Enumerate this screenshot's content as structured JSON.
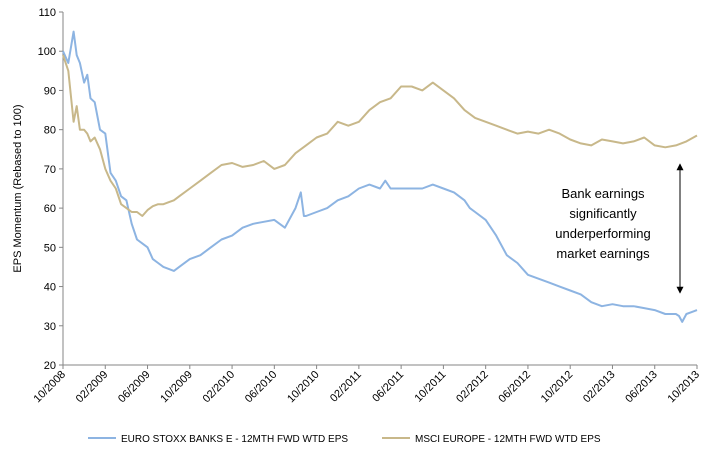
{
  "chart_data": {
    "type": "line",
    "title": "",
    "xlabel": "",
    "ylabel": "EPS Momentum (Rebased to 100)",
    "ylim": [
      20,
      110
    ],
    "y_ticks": [
      "20",
      "30",
      "40",
      "50",
      "60",
      "70",
      "80",
      "90",
      "100",
      "110"
    ],
    "x_ticks": [
      "10/2008",
      "02/2009",
      "06/2009",
      "10/2009",
      "02/2010",
      "06/2010",
      "10/2010",
      "02/2011",
      "06/2011",
      "10/2011",
      "02/2012",
      "06/2012",
      "10/2012",
      "02/2013",
      "06/2013",
      "10/2013"
    ],
    "x_range": [
      0,
      60
    ],
    "grid": false,
    "legend_position": "bottom",
    "series": [
      {
        "name": "EURO STOXX BANKS E - 12MTH FWD WTD EPS",
        "color": "#8db4e2",
        "x": [
          0,
          0.5,
          1,
          1.3,
          1.6,
          2.0,
          2.3,
          2.6,
          3,
          3.5,
          4,
          4.5,
          5,
          5.5,
          6,
          6.5,
          7,
          7.5,
          8,
          8.5,
          9,
          9.5,
          10,
          10.5,
          11,
          12,
          13,
          14,
          15,
          16,
          17,
          18,
          19,
          20,
          21,
          22,
          22.5,
          22.8,
          23,
          24,
          25,
          26,
          27,
          28,
          29,
          30,
          30.5,
          31,
          32,
          33,
          34,
          35,
          36,
          37,
          38,
          38.5,
          39,
          40,
          41,
          42,
          43,
          44,
          45,
          46,
          47,
          48,
          49,
          50,
          51,
          52,
          53,
          54,
          55,
          56,
          57,
          58,
          58.3,
          58.6,
          59,
          59.5,
          60
        ],
        "values": [
          100,
          97,
          105,
          99,
          97,
          92,
          94,
          88,
          87,
          80,
          79,
          69,
          67,
          63,
          62,
          56,
          52,
          51,
          50,
          47,
          46,
          45,
          44.5,
          44,
          45,
          47,
          48,
          50,
          52,
          53,
          55,
          56,
          56.5,
          57,
          55,
          60,
          64,
          58,
          58,
          59,
          60,
          62,
          63,
          65,
          66,
          65,
          67,
          65,
          65,
          65,
          65,
          66,
          65,
          64,
          62,
          60,
          59,
          57,
          53,
          48,
          46,
          43,
          42,
          41,
          40,
          39,
          38,
          36,
          35,
          35.5,
          35,
          35,
          34.5,
          34,
          33,
          33,
          32.5,
          31,
          33,
          33.5,
          34
        ]
      },
      {
        "name": "MSCI EUROPE - 12MTH FWD WTD EPS",
        "color": "#c8b88a",
        "x": [
          0,
          0.5,
          1,
          1.3,
          1.6,
          2.0,
          2.3,
          2.6,
          3,
          3.5,
          4,
          4.5,
          5,
          5.5,
          6,
          6.5,
          7,
          7.5,
          8,
          8.5,
          9,
          9.5,
          10,
          10.5,
          11,
          12,
          13,
          14,
          15,
          16,
          17,
          18,
          19,
          20,
          21,
          22,
          23,
          24,
          25,
          26,
          27,
          28,
          29,
          30,
          31,
          32,
          33,
          34,
          35,
          36,
          37,
          38,
          39,
          40,
          41,
          42,
          43,
          44,
          45,
          46,
          47,
          48,
          49,
          50,
          51,
          52,
          53,
          54,
          55,
          56,
          57,
          58,
          59,
          60
        ],
        "values": [
          99,
          95,
          82,
          86,
          80,
          80,
          79,
          77,
          78,
          75,
          70,
          67,
          65,
          61,
          60,
          59,
          59,
          58,
          59.5,
          60.5,
          61,
          61,
          61.5,
          62,
          63,
          65,
          67,
          69,
          71,
          71.5,
          70.5,
          71,
          72,
          70,
          71,
          74,
          76,
          78,
          79,
          82,
          81,
          82,
          85,
          87,
          88,
          91,
          91,
          90,
          92,
          90,
          88,
          85,
          83,
          82,
          81,
          80,
          79,
          79.5,
          79,
          80,
          79,
          77.5,
          76.5,
          76,
          77.5,
          77,
          76.5,
          77,
          78,
          76,
          75.5,
          76,
          77,
          78.5
        ]
      }
    ],
    "annotation": {
      "lines": [
        "Bank earnings",
        "significantly",
        "underperforming",
        "market earnings"
      ],
      "arrow": "double-headed, vertical, between the two series at 06/2013–10/2013"
    }
  }
}
